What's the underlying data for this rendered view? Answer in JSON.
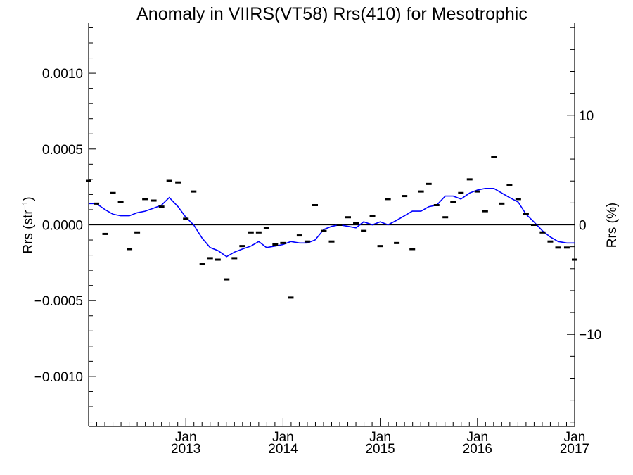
{
  "chart_data": {
    "type": "scatter",
    "title": "Anomaly in VIIRS(VT58) Rrs(410) for Mesotrophic",
    "ylabel_left_main": "Rrs (str",
    "ylabel_left_sup": "−1",
    "ylabel_left_close": ")",
    "ylabel_right": "Rrs (%)",
    "xlim": [
      2012.0,
      2017.0
    ],
    "ylim_left": [
      -0.00133,
      0.00133
    ],
    "ylim_right": [
      -18.4,
      18.4
    ],
    "x_ticks": [
      {
        "x": 2013,
        "month": "Jan",
        "year": "2013"
      },
      {
        "x": 2014,
        "month": "Jan",
        "year": "2014"
      },
      {
        "x": 2015,
        "month": "Jan",
        "year": "2015"
      },
      {
        "x": 2016,
        "month": "Jan",
        "year": "2016"
      },
      {
        "x": 2017,
        "month": "Jan",
        "year": "2017"
      }
    ],
    "y_left_ticks": [
      {
        "v": 0.001,
        "label": "0.0010"
      },
      {
        "v": 0.0005,
        "label": "0.0005"
      },
      {
        "v": 0.0,
        "label": "0.0000"
      },
      {
        "v": -0.0005,
        "label": "−0.0005"
      },
      {
        "v": -0.001,
        "label": "−0.0010"
      }
    ],
    "y_right_ticks": [
      {
        "v": 10,
        "label": "10"
      },
      {
        "v": 0,
        "label": "0"
      },
      {
        "v": -10,
        "label": "−10"
      }
    ],
    "series": [
      {
        "kind": "points",
        "color": "#000000",
        "x": [
          2012.0,
          2012.08,
          2012.17,
          2012.25,
          2012.33,
          2012.42,
          2012.5,
          2012.58,
          2012.67,
          2012.75,
          2012.83,
          2012.92,
          2013.0,
          2013.08,
          2013.17,
          2013.25,
          2013.33,
          2013.42,
          2013.5,
          2013.58,
          2013.67,
          2013.75,
          2013.83,
          2013.92,
          2014.0,
          2014.08,
          2014.17,
          2014.25,
          2014.33,
          2014.42,
          2014.5,
          2014.58,
          2014.67,
          2014.75,
          2014.83,
          2014.92,
          2015.0,
          2015.08,
          2015.17,
          2015.25,
          2015.33,
          2015.42,
          2015.5,
          2015.58,
          2015.67,
          2015.75,
          2015.83,
          2015.92,
          2016.0,
          2016.08,
          2016.17,
          2016.25,
          2016.33,
          2016.42,
          2016.5,
          2016.58,
          2016.67,
          2016.75,
          2016.83,
          2016.92,
          2017.0
        ],
        "y": [
          0.00029,
          0.00014,
          -6e-05,
          0.00021,
          0.00015,
          -0.00016,
          -5e-05,
          0.00017,
          0.00016,
          0.00012,
          0.00029,
          0.00028,
          4e-05,
          0.00022,
          -0.00026,
          -0.00022,
          -0.00023,
          -0.00036,
          -0.00022,
          -0.00014,
          -5e-05,
          -5e-05,
          -2e-05,
          -0.00013,
          -0.00012,
          -0.00048,
          -7e-05,
          -0.00011,
          0.00013,
          -4e-05,
          -0.00011,
          0.0,
          5e-05,
          1e-05,
          -4e-05,
          6e-05,
          -0.00014,
          0.00017,
          -0.00012,
          0.00019,
          -0.00016,
          0.00022,
          0.00027,
          0.00013,
          5e-05,
          0.00015,
          0.00021,
          0.0003,
          0.00022,
          9e-05,
          0.00045,
          0.00014,
          0.00026,
          0.00017,
          7e-05,
          0.0,
          -5e-05,
          -0.00011,
          -0.00015,
          -0.00015,
          -0.00023
        ]
      },
      {
        "kind": "line",
        "color": "#0000ff",
        "x": [
          2012.0,
          2012.08,
          2012.17,
          2012.25,
          2012.33,
          2012.42,
          2012.5,
          2012.58,
          2012.67,
          2012.75,
          2012.83,
          2012.92,
          2013.0,
          2013.08,
          2013.17,
          2013.25,
          2013.33,
          2013.42,
          2013.5,
          2013.58,
          2013.67,
          2013.75,
          2013.83,
          2013.92,
          2014.0,
          2014.08,
          2014.17,
          2014.25,
          2014.33,
          2014.42,
          2014.5,
          2014.58,
          2014.67,
          2014.75,
          2014.83,
          2014.92,
          2015.0,
          2015.08,
          2015.17,
          2015.25,
          2015.33,
          2015.42,
          2015.5,
          2015.58,
          2015.67,
          2015.75,
          2015.83,
          2015.92,
          2016.0,
          2016.08,
          2016.17,
          2016.25,
          2016.33,
          2016.42,
          2016.5,
          2016.58,
          2016.67,
          2016.75,
          2016.83,
          2016.92,
          2017.0
        ],
        "y": [
          0.00014,
          0.00014,
          0.0001,
          7e-05,
          6e-05,
          6e-05,
          8e-05,
          9e-05,
          0.00011,
          0.00013,
          0.00018,
          0.00012,
          5e-05,
          0.0,
          -9e-05,
          -0.00015,
          -0.00017,
          -0.00021,
          -0.00018,
          -0.00016,
          -0.00014,
          -0.00011,
          -0.00015,
          -0.00014,
          -0.00013,
          -0.00011,
          -0.00012,
          -0.00012,
          -0.0001,
          -3e-05,
          -1e-05,
          0.0,
          -1e-05,
          -2e-05,
          2e-05,
          0.0,
          2e-05,
          0.0,
          3e-05,
          6e-05,
          9e-05,
          9e-05,
          0.00012,
          0.00013,
          0.00019,
          0.00019,
          0.00017,
          0.00021,
          0.00023,
          0.00024,
          0.00024,
          0.00021,
          0.00018,
          0.00015,
          7e-05,
          2e-05,
          -4e-05,
          -8e-05,
          -0.00011,
          -0.00012,
          -0.00012
        ]
      }
    ],
    "zero_line": true,
    "grid": false
  }
}
